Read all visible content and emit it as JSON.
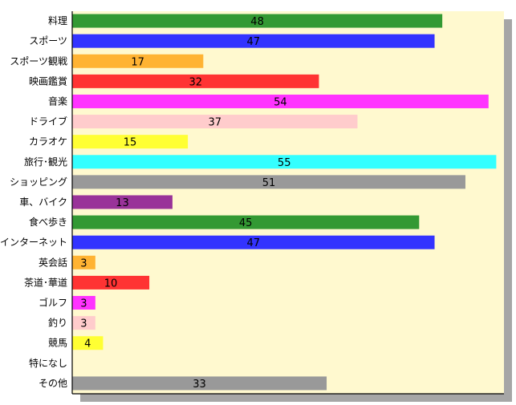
{
  "chart_data": {
    "type": "bar",
    "orientation": "horizontal",
    "title": "",
    "xlabel": "",
    "ylabel": "",
    "xlim": [
      0,
      56
    ],
    "grid": false,
    "legend": "none",
    "plot_background": "#fff9cf",
    "shadow_color": "#a6a6a6",
    "categories": [
      "料理",
      "スポーツ",
      "スポーツ観戦",
      "映画鑑賞",
      "音楽",
      "ドライブ",
      "カラオケ",
      "旅行･観光",
      "ショッピング",
      "車、バイク",
      "食べ歩き",
      "インターネット",
      "英会話",
      "茶道･華道",
      "ゴルフ",
      "釣り",
      "競馬",
      "特になし",
      "その他"
    ],
    "values": [
      48,
      47,
      17,
      32,
      54,
      37,
      15,
      55,
      51,
      13,
      45,
      47,
      3,
      10,
      3,
      3,
      4,
      0,
      33
    ],
    "colors": [
      "#339933",
      "#3333ff",
      "#ffb333",
      "#ff3333",
      "#ff33ff",
      "#ffcccc",
      "#ffff33",
      "#33ffff",
      "#999999",
      "#993399",
      "#339933",
      "#3333ff",
      "#ffb333",
      "#ff3333",
      "#ff33ff",
      "#ffcccc",
      "#ffff33",
      "#33ffff",
      "#999999"
    ]
  }
}
